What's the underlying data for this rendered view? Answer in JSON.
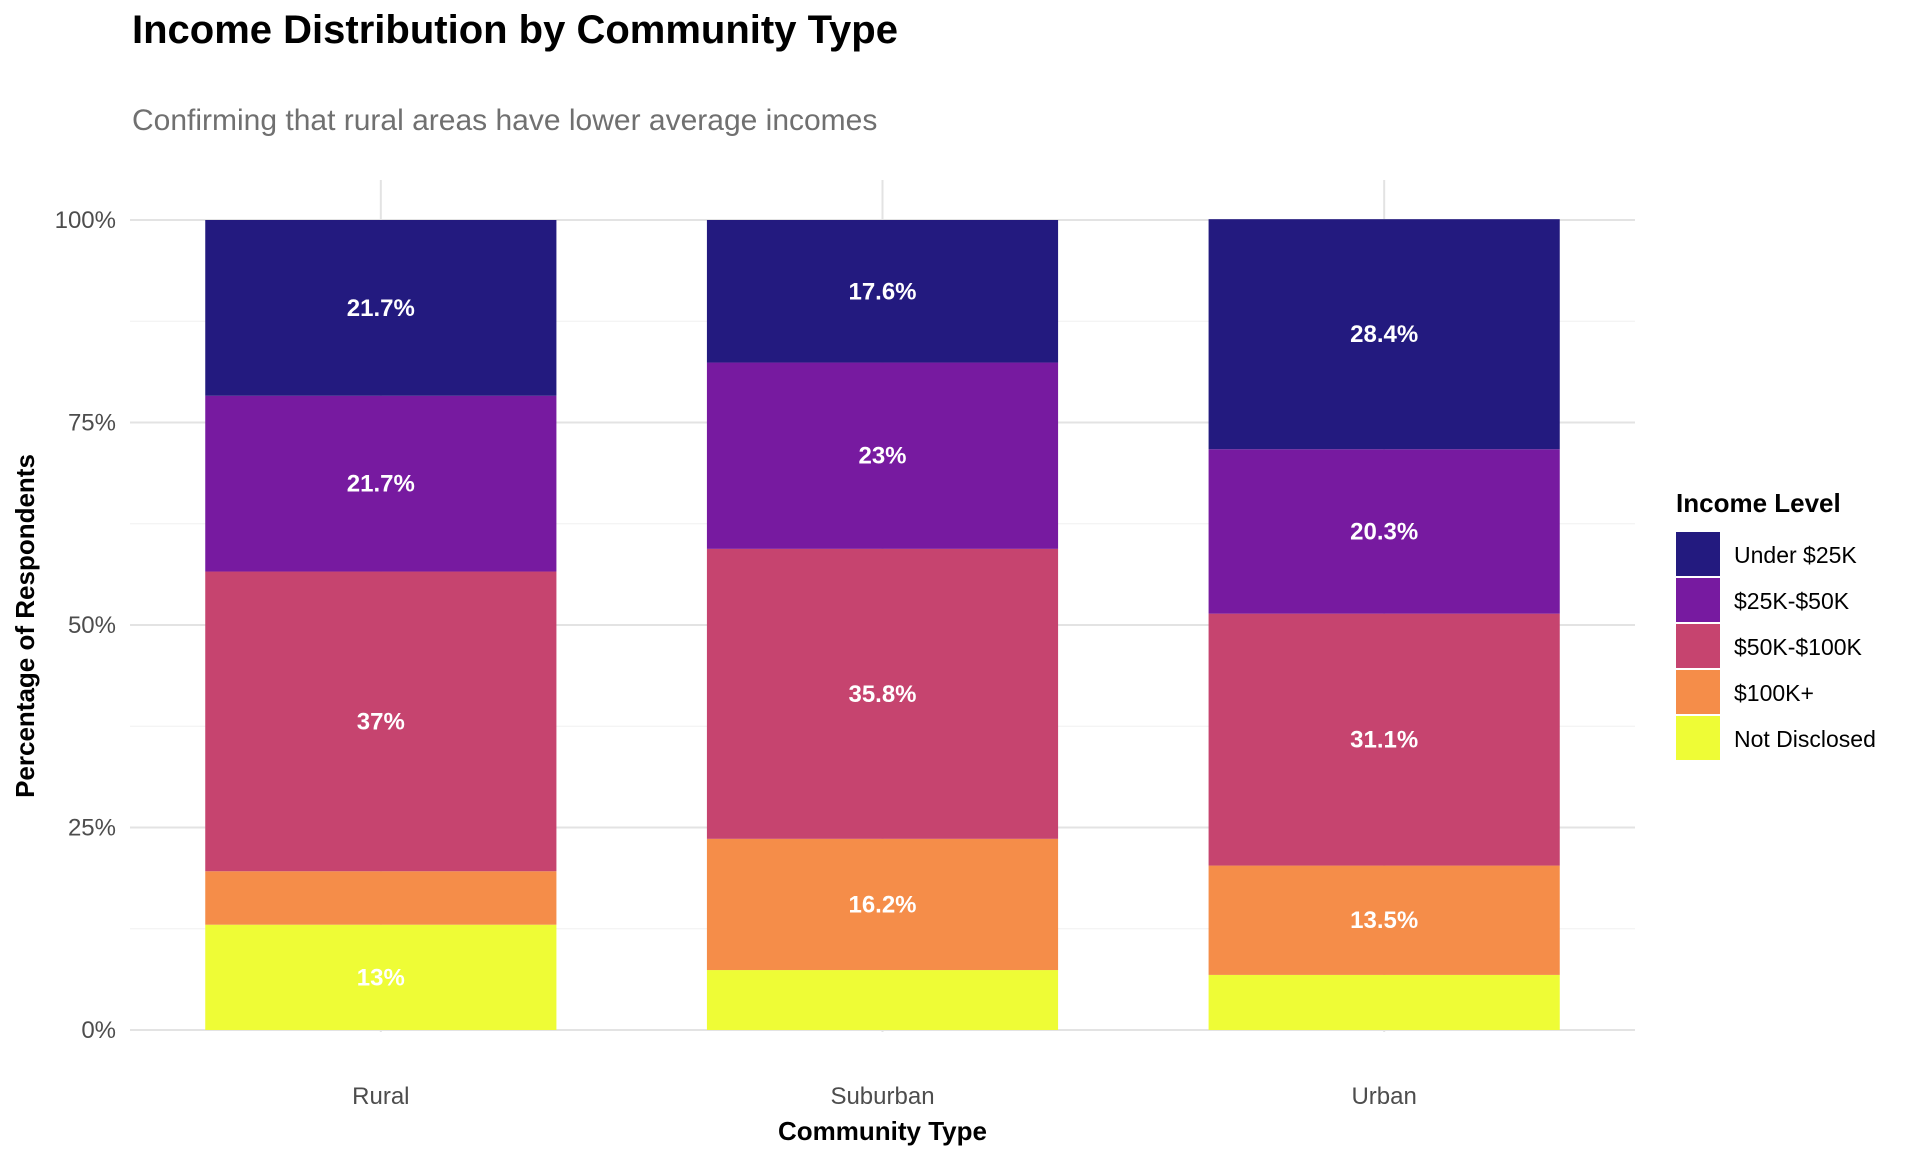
{
  "chart_data": {
    "type": "bar",
    "stacked": true,
    "title": "Income Distribution by Community Type",
    "subtitle": "Confirming that rural areas have lower average incomes",
    "xlabel": "Community Type",
    "ylabel": "Percentage of Respondents",
    "categories": [
      "Rural",
      "Suburban",
      "Urban"
    ],
    "ylim": [
      0,
      100
    ],
    "yticks": [
      0,
      25,
      50,
      75,
      100
    ],
    "ytick_labels": [
      "0%",
      "25%",
      "50%",
      "75%",
      "100%"
    ],
    "grid": true,
    "legend_title": "Income Level",
    "legend_position": "right",
    "series": [
      {
        "name": "Under $25K",
        "color": "#231a7f",
        "values": [
          21.7,
          17.6,
          28.4
        ],
        "labels": [
          "21.7%",
          "17.6%",
          "28.4%"
        ]
      },
      {
        "name": "$25K-$50K",
        "color": "#771aa0",
        "values": [
          21.7,
          23.0,
          20.3
        ],
        "labels": [
          "21.7%",
          "23%",
          "20.3%"
        ]
      },
      {
        "name": "$50K-$100K",
        "color": "#c6446f",
        "values": [
          37.0,
          35.8,
          31.1
        ],
        "labels": [
          "37%",
          "35.8%",
          "31.1%"
        ]
      },
      {
        "name": "$100K+",
        "color": "#f58d49",
        "values": [
          6.6,
          16.2,
          13.5
        ],
        "labels": [
          "",
          "16.2%",
          "13.5%"
        ]
      },
      {
        "name": "Not Disclosed",
        "color": "#eefc36",
        "values": [
          13.0,
          7.4,
          6.8
        ],
        "labels": [
          "13%",
          "",
          ""
        ]
      }
    ]
  }
}
